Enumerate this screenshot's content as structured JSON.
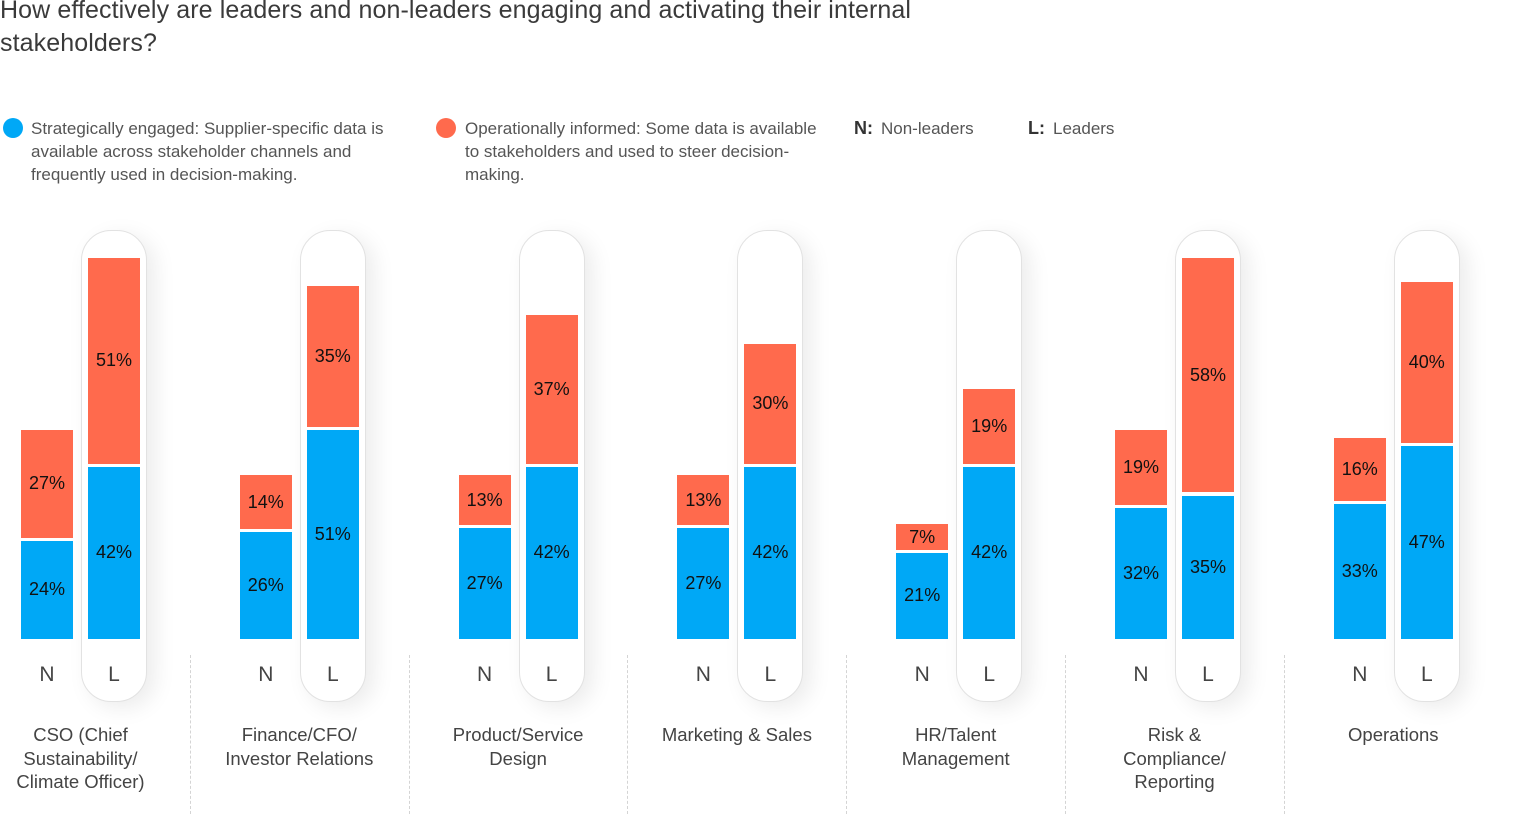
{
  "title": "How effectively are leaders and non-leaders engaging and activating their internal stakeholders?",
  "legend": {
    "series": [
      {
        "name": "Strategically engaged",
        "label": "Strategically engaged: Supplier-specific data is available across stakeholder channels and frequently used in decision-making.",
        "color": "#00a8f6",
        "icon": "circle-icon"
      },
      {
        "name": "Operationally informed",
        "label": "Operationally informed: Some data is available to stakeholders and used to steer decision-making.",
        "color": "#ff6a4d",
        "icon": "circle-icon"
      }
    ],
    "keys": [
      {
        "abbr": "N:",
        "meaning": "Non-leaders"
      },
      {
        "abbr": "L:",
        "meaning": "Leaders"
      }
    ]
  },
  "chart_data": {
    "type": "bar",
    "stacked": true,
    "title": "How effectively are leaders and non-leaders engaging and activating their internal stakeholders?",
    "xlabel": "",
    "ylabel": "",
    "ylim": [
      0,
      100
    ],
    "grid": false,
    "legend_position": "top-left",
    "sub_categories": [
      "N",
      "L"
    ],
    "sub_category_meaning": {
      "N": "Non-leaders",
      "L": "Leaders"
    },
    "categories": [
      "CSO (Chief\nSustainability/\nClimate Officer)",
      "Finance/CFO/\nInvestor Relations",
      "Product/Service\nDesign",
      "Marketing & Sales",
      "HR/Talent\nManagement",
      "Risk &\nCompliance/\nReporting",
      "Operations"
    ],
    "series": [
      {
        "name": "Strategically engaged",
        "color": "#00a8f6",
        "values": {
          "N": [
            24,
            26,
            27,
            27,
            21,
            32,
            33
          ],
          "L": [
            42,
            51,
            42,
            42,
            42,
            35,
            47
          ]
        },
        "labels": {
          "N": [
            "24%",
            "26%",
            "27%",
            "27%",
            "21%",
            "32%",
            "33%"
          ],
          "L": [
            "42%",
            "51%",
            "42%",
            "42%",
            "42%",
            "35%",
            "47%"
          ]
        }
      },
      {
        "name": "Operationally informed",
        "color": "#ff6a4d",
        "values": {
          "N": [
            27,
            14,
            13,
            13,
            7,
            19,
            16
          ],
          "L": [
            51,
            35,
            37,
            30,
            19,
            58,
            40
          ]
        },
        "labels": {
          "N": [
            "27%",
            "14%",
            "13%",
            "13%",
            "7%",
            "19%",
            "16%"
          ],
          "L": [
            "51%",
            "35%",
            "37%",
            "30%",
            "19%",
            "58%",
            "40%"
          ]
        }
      }
    ]
  }
}
